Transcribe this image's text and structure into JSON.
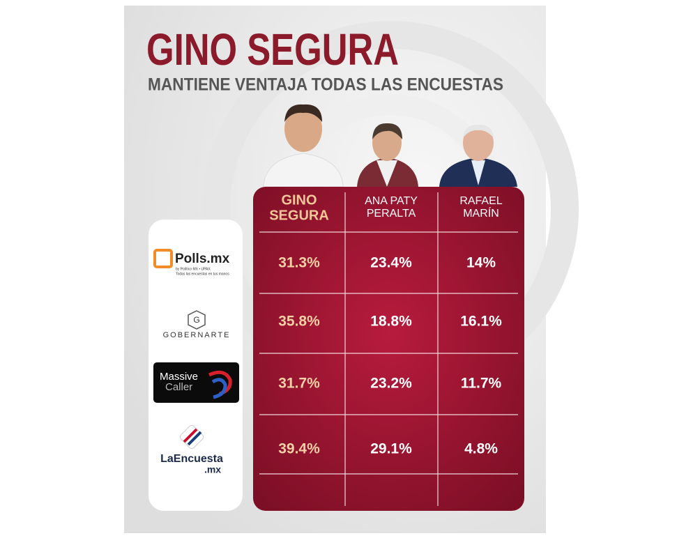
{
  "header": {
    "title": "GINO SEGURA",
    "subtitle": "MANTIENE VENTAJA TODAS LAS ENCUESTAS"
  },
  "table": {
    "columns": [
      [
        "GINO",
        "SEGURA"
      ],
      [
        "ANA PATY",
        "PERALTA"
      ],
      [
        "RAFAEL",
        "MARÍN"
      ]
    ],
    "rows": [
      {
        "pollster": [
          "Polls.mx",
          "by Político MX • UPAX",
          "Todas las encuestas en tus manos"
        ],
        "values": [
          "31.3%",
          "23.4%",
          "14%"
        ]
      },
      {
        "pollster": [
          "G",
          "GOBERNARTE"
        ],
        "values": [
          "35.8%",
          "18.8%",
          "16.1%"
        ]
      },
      {
        "pollster": [
          "Massive",
          "Caller"
        ],
        "values": [
          "31.7%",
          "23.2%",
          "11.7%"
        ]
      },
      {
        "pollster": [
          "LaEncuesta",
          ".mx"
        ],
        "values": [
          "39.4%",
          "29.1%",
          "4.8%"
        ]
      }
    ]
  }
}
